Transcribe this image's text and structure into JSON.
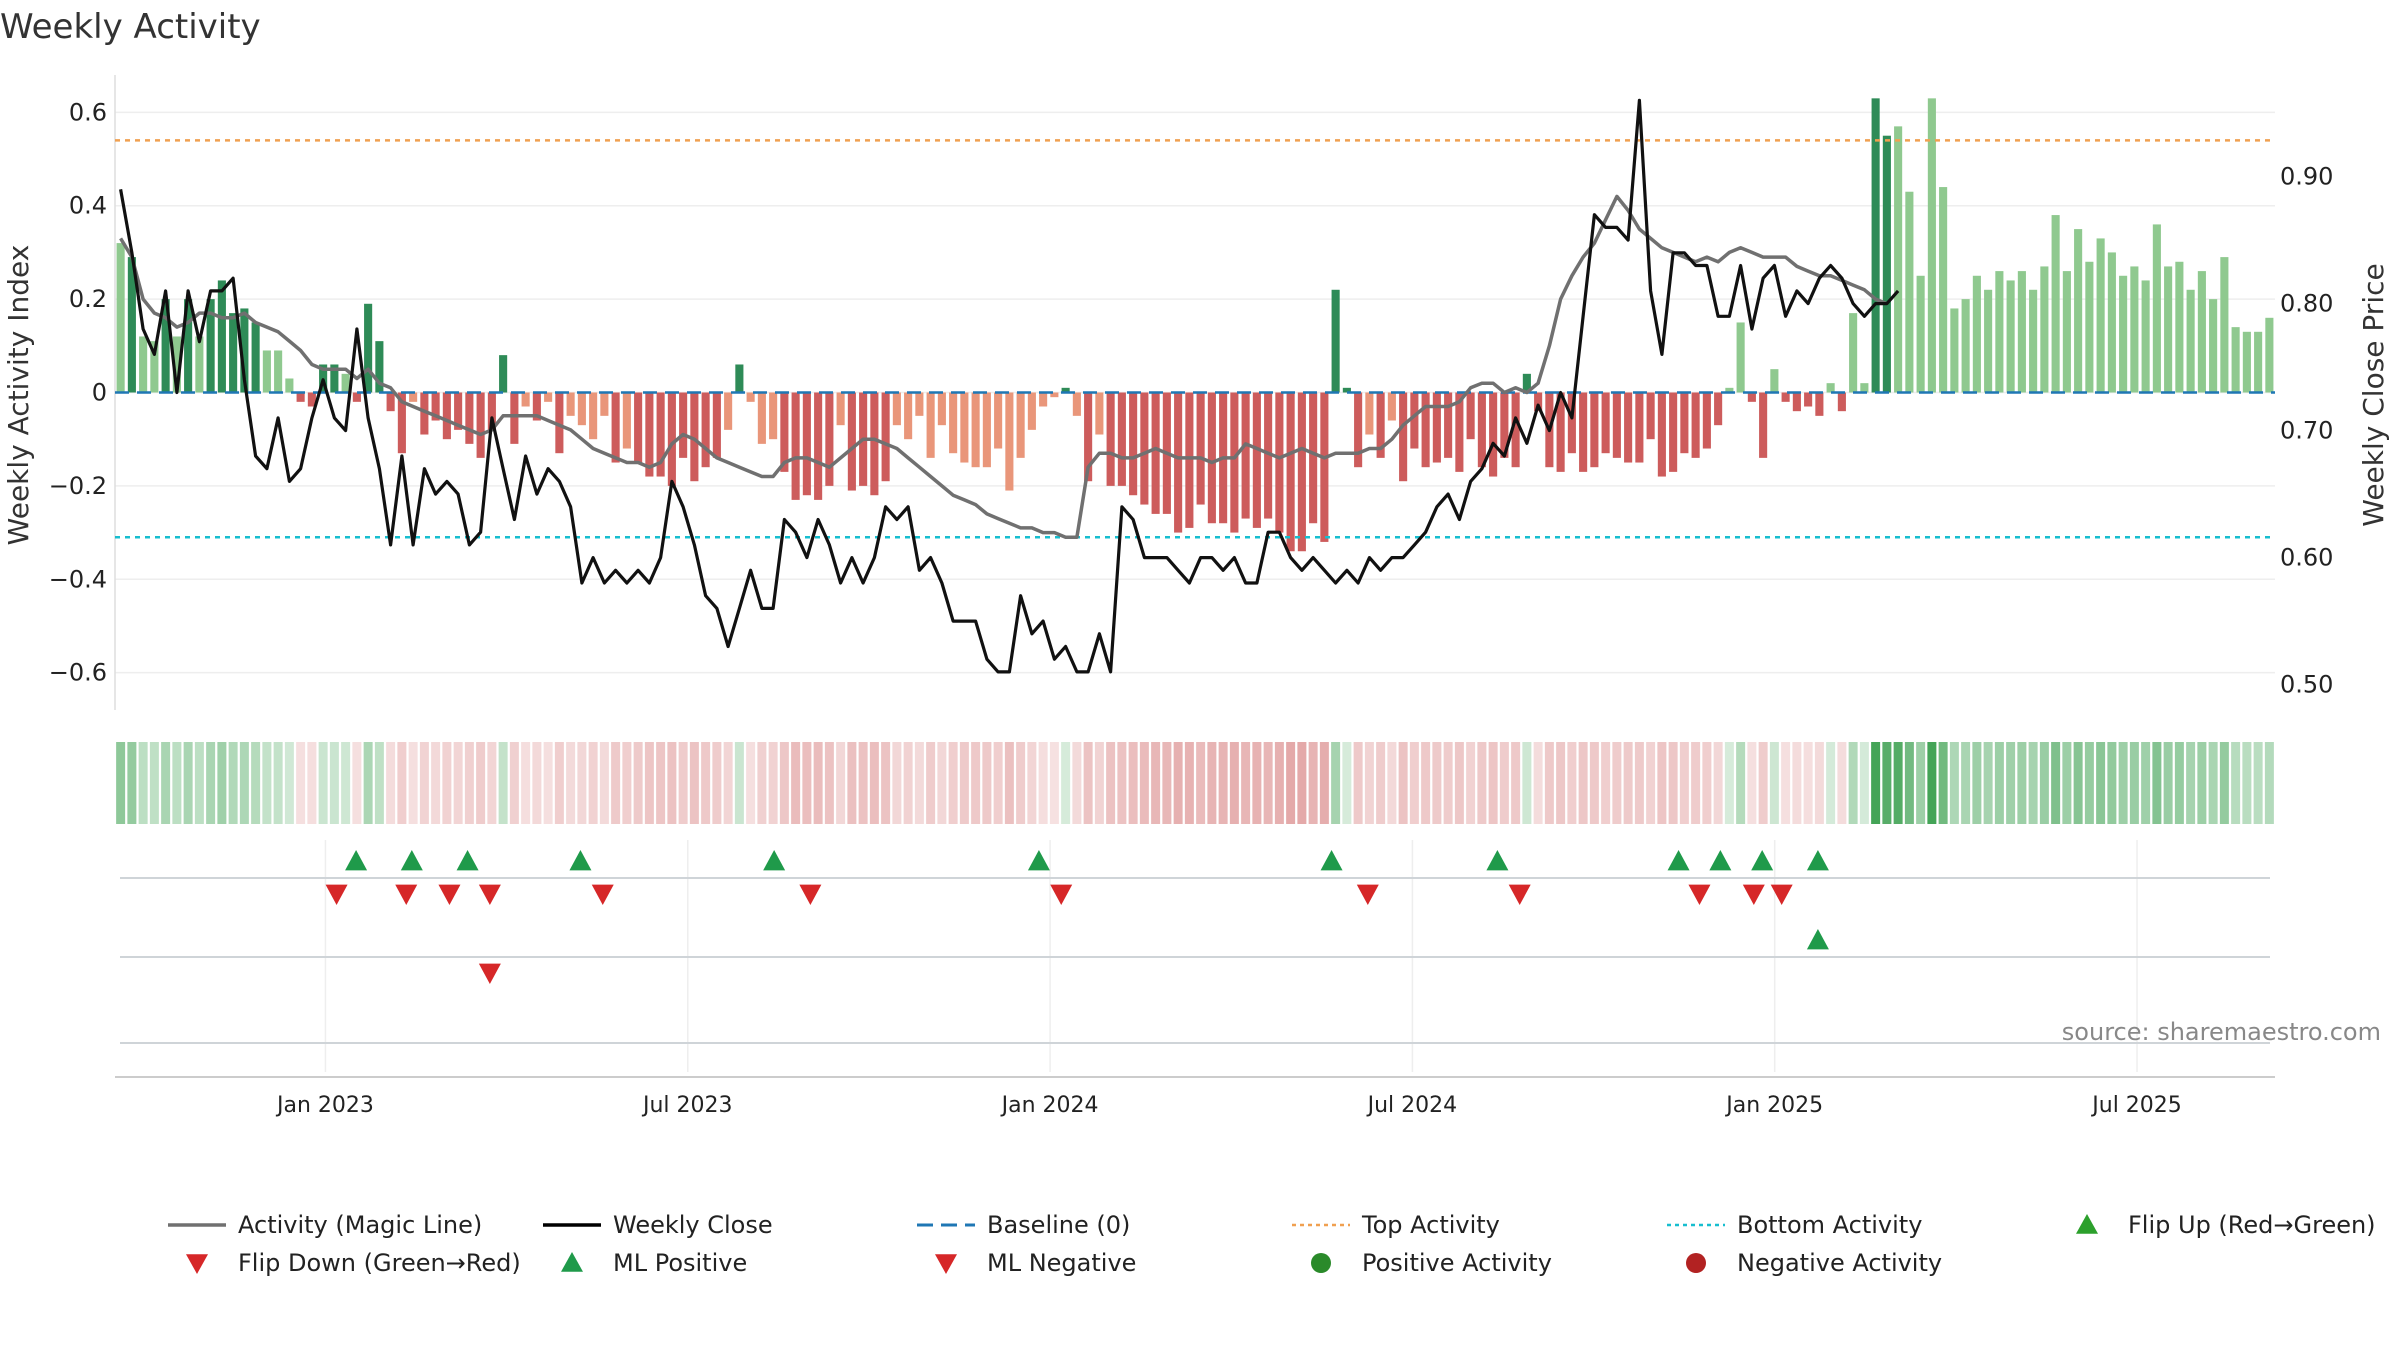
{
  "chart_data": {
    "type": "bar",
    "title": "Weekly Activity",
    "ylabel": "Weekly Activity Index",
    "y2label": "Weekly Close Price",
    "source": "source: sharemaestro.com",
    "ylim": [
      -0.68,
      0.68
    ],
    "y2lim": [
      0.48,
      0.98
    ],
    "yticks": [
      0.6,
      0.4,
      0.2,
      0,
      -0.2,
      -0.4,
      -0.6
    ],
    "ytick_labels": [
      "0.6",
      "0.4",
      "0.2",
      "0",
      "−0.2",
      "−0.4",
      "−0.6"
    ],
    "y2ticks": [
      0.9,
      0.8,
      0.7,
      0.6,
      0.5
    ],
    "y2tick_labels": [
      "0.90",
      "0.80",
      "0.70",
      "0.60",
      "0.50"
    ],
    "xlim": [
      0,
      155
    ],
    "xticks": [
      15.1,
      41.1,
      67.1,
      93.1,
      119.1,
      145.1
    ],
    "xtick_labels": [
      "Jan 2023",
      "Jul 2023",
      "Jan 2024",
      "Jul 2024",
      "Jan 2025",
      "Jul 2025"
    ],
    "baseline": 0,
    "top_activity": 0.54,
    "bottom_activity": -0.31,
    "activity": [
      0.32,
      0.29,
      0.12,
      0.11,
      0.2,
      0.12,
      0.2,
      0.12,
      0.2,
      0.24,
      0.17,
      0.18,
      0.15,
      0.09,
      0.09,
      0.03,
      -0.02,
      -0.03,
      0.06,
      0.06,
      0.04,
      -0.02,
      0.19,
      0.11,
      -0.04,
      -0.13,
      -0.02,
      -0.09,
      -0.06,
      -0.1,
      -0.08,
      -0.11,
      -0.14,
      -0.08,
      0.08,
      -0.11,
      -0.03,
      -0.06,
      -0.02,
      -0.13,
      -0.05,
      -0.07,
      -0.1,
      -0.05,
      -0.15,
      -0.12,
      -0.15,
      -0.18,
      -0.18,
      -0.2,
      -0.14,
      -0.19,
      -0.16,
      -0.14,
      -0.08,
      0.06,
      -0.02,
      -0.11,
      -0.1,
      -0.17,
      -0.23,
      -0.22,
      -0.23,
      -0.2,
      -0.07,
      -0.21,
      -0.2,
      -0.22,
      -0.19,
      -0.07,
      -0.1,
      -0.05,
      -0.14,
      -0.07,
      -0.13,
      -0.15,
      -0.16,
      -0.16,
      -0.12,
      -0.21,
      -0.14,
      -0.08,
      -0.03,
      -0.01,
      0.01,
      -0.05,
      -0.19,
      -0.09,
      -0.2,
      -0.2,
      -0.22,
      -0.24,
      -0.26,
      -0.26,
      -0.3,
      -0.29,
      -0.24,
      -0.28,
      -0.28,
      -0.3,
      -0.27,
      -0.29,
      -0.27,
      -0.3,
      -0.34,
      -0.34,
      -0.28,
      -0.32,
      0.22,
      0.01,
      -0.16,
      -0.09,
      -0.14,
      -0.06,
      -0.19,
      -0.12,
      -0.16,
      -0.15,
      -0.14,
      -0.17,
      -0.1,
      -0.16,
      -0.18,
      -0.14,
      -0.16,
      0.04,
      -0.04,
      -0.16,
      -0.17,
      -0.13,
      -0.17,
      -0.16,
      -0.13,
      -0.14,
      -0.15,
      -0.15,
      -0.1,
      -0.18,
      -0.17,
      -0.13,
      -0.14,
      -0.12,
      -0.07,
      0.01,
      0.15,
      -0.02,
      -0.14,
      0.05,
      -0.02,
      -0.04,
      -0.03,
      -0.05,
      0.02,
      -0.04,
      0.17,
      0.02,
      0.63,
      0.55,
      0.57,
      0.43,
      0.25,
      0.63,
      0.44,
      0.18,
      0.2,
      0.25,
      0.22,
      0.26,
      0.24,
      0.26,
      0.22,
      0.27,
      0.38,
      0.26,
      0.35,
      0.28,
      0.33,
      0.3,
      0.25,
      0.27,
      0.24,
      0.36,
      0.27,
      0.28,
      0.22,
      0.26,
      0.2,
      0.29,
      0.14,
      0.13,
      0.13,
      0.16
    ],
    "activity_labels_note": "One bar per week, Nov 2022 – Sep 2025",
    "weekly_close": [
      0.89,
      0.84,
      0.78,
      0.76,
      0.81,
      0.73,
      0.81,
      0.77,
      0.81,
      0.81,
      0.82,
      0.74,
      0.68,
      0.67,
      0.71,
      0.66,
      0.67,
      0.71,
      0.74,
      0.71,
      0.7,
      0.78,
      0.71,
      0.67,
      0.61,
      0.68,
      0.61,
      0.67,
      0.65,
      0.66,
      0.65,
      0.61,
      0.62,
      0.71,
      0.67,
      0.63,
      0.68,
      0.65,
      0.67,
      0.66,
      0.64,
      0.58,
      0.6,
      0.58,
      0.59,
      0.58,
      0.59,
      0.58,
      0.6,
      0.66,
      0.64,
      0.61,
      0.57,
      0.56,
      0.53,
      0.56,
      0.59,
      0.56,
      0.56,
      0.63,
      0.62,
      0.6,
      0.63,
      0.61,
      0.58,
      0.6,
      0.58,
      0.6,
      0.64,
      0.63,
      0.64,
      0.59,
      0.6,
      0.58,
      0.55,
      0.55,
      0.55,
      0.52,
      0.51,
      0.51,
      0.57,
      0.54,
      0.55,
      0.52,
      0.53,
      0.51,
      0.51,
      0.54,
      0.51,
      0.64,
      0.63,
      0.6,
      0.6,
      0.6,
      0.59,
      0.58,
      0.6,
      0.6,
      0.59,
      0.6,
      0.58,
      0.58,
      0.62,
      0.62,
      0.6,
      0.59,
      0.6,
      0.59,
      0.58,
      0.59,
      0.58,
      0.6,
      0.59,
      0.6,
      0.6,
      0.61,
      0.62,
      0.64,
      0.65,
      0.63,
      0.66,
      0.67,
      0.69,
      0.68,
      0.71,
      0.69,
      0.72,
      0.7,
      0.73,
      0.71,
      0.79,
      0.87,
      0.86,
      0.86,
      0.85,
      0.96,
      0.81,
      0.76,
      0.84,
      0.84,
      0.83,
      0.83,
      0.79,
      0.79,
      0.83,
      0.78,
      0.82,
      0.83,
      0.79,
      0.81,
      0.8,
      0.82,
      0.83,
      0.82,
      0.8,
      0.79,
      0.8,
      0.8,
      0.81
    ],
    "magic_line": [
      0.33,
      0.29,
      0.2,
      0.17,
      0.16,
      0.14,
      0.15,
      0.17,
      0.17,
      0.16,
      0.16,
      0.17,
      0.15,
      0.14,
      0.13,
      0.11,
      0.09,
      0.06,
      0.05,
      0.05,
      0.05,
      0.03,
      0.05,
      0.02,
      0.01,
      -0.02,
      -0.03,
      -0.04,
      -0.05,
      -0.06,
      -0.07,
      -0.08,
      -0.09,
      -0.08,
      -0.05,
      -0.05,
      -0.05,
      -0.05,
      -0.06,
      -0.07,
      -0.08,
      -0.1,
      -0.12,
      -0.13,
      -0.14,
      -0.15,
      -0.15,
      -0.16,
      -0.15,
      -0.11,
      -0.09,
      -0.1,
      -0.12,
      -0.14,
      -0.15,
      -0.16,
      -0.17,
      -0.18,
      -0.18,
      -0.15,
      -0.14,
      -0.14,
      -0.15,
      -0.16,
      -0.14,
      -0.12,
      -0.1,
      -0.1,
      -0.11,
      -0.12,
      -0.14,
      -0.16,
      -0.18,
      -0.2,
      -0.22,
      -0.23,
      -0.24,
      -0.26,
      -0.27,
      -0.28,
      -0.29,
      -0.29,
      -0.3,
      -0.3,
      -0.31,
      -0.31,
      -0.16,
      -0.13,
      -0.13,
      -0.14,
      -0.14,
      -0.13,
      -0.12,
      -0.13,
      -0.14,
      -0.14,
      -0.14,
      -0.15,
      -0.14,
      -0.14,
      -0.11,
      -0.12,
      -0.13,
      -0.14,
      -0.13,
      -0.12,
      -0.13,
      -0.14,
      -0.13,
      -0.13,
      -0.13,
      -0.12,
      -0.12,
      -0.1,
      -0.07,
      -0.05,
      -0.03,
      -0.03,
      -0.03,
      -0.02,
      0.01,
      0.02,
      0.02,
      0.0,
      0.01,
      0.0,
      0.02,
      0.1,
      0.2,
      0.25,
      0.29,
      0.32,
      0.37,
      0.42,
      0.39,
      0.35,
      0.33,
      0.31,
      0.3,
      0.29,
      0.28,
      0.29,
      0.28,
      0.3,
      0.31,
      0.3,
      0.29,
      0.29,
      0.29,
      0.27,
      0.26,
      0.25,
      0.25,
      0.24,
      0.23,
      0.22,
      0.2,
      0.19
    ],
    "strip": "composite activity heat-strip (green = positive, red = negative)",
    "events": {
      "flip_up": [
        17.3,
        21.3,
        25.3,
        33.4,
        47.3,
        66.3,
        87.3,
        99.2,
        112.2,
        115.2,
        118.2,
        122.2
      ],
      "flip_down": [
        15.9,
        20.9,
        24.0,
        26.9,
        35.0,
        49.9,
        67.9,
        89.9,
        100.8,
        113.7,
        117.6,
        119.6
      ],
      "ml_positive": [
        122.2
      ],
      "ml_negative": [
        26.9
      ]
    },
    "legend": [
      {
        "label": "Activity (Magic Line)",
        "marker": "line",
        "color": "#707070"
      },
      {
        "label": "Weekly Close",
        "marker": "line",
        "color": "#000000"
      },
      {
        "label": "Baseline (0)",
        "marker": "dashed-line",
        "color": "#1f77b4"
      },
      {
        "label": "Top Activity",
        "marker": "dotted-line",
        "color": "#f0a050"
      },
      {
        "label": "Bottom Activity",
        "marker": "dotted-line",
        "color": "#17becf"
      },
      {
        "label": "Flip Up (Red→Green)",
        "marker": "triangle-up",
        "color": "#2ca02c"
      },
      {
        "label": "Flip Down (Green→Red)",
        "marker": "triangle-down",
        "color": "#d62728"
      },
      {
        "label": "ML Positive",
        "marker": "triangle-up",
        "color": "#1f9a4a"
      },
      {
        "label": "ML Negative",
        "marker": "triangle-down",
        "color": "#d62728"
      },
      {
        "label": "Positive Activity",
        "marker": "circle",
        "color": "#2a8a2a"
      },
      {
        "label": "Negative Activity",
        "marker": "circle",
        "color": "#b22222"
      }
    ],
    "colors": {
      "pos_dark": "#2e8b57",
      "pos_light": "#8fc98f",
      "neg_dark": "#cd5c5c",
      "neg_light": "#e9967a",
      "close": "#111111",
      "magic": "#707070",
      "top": "#f0a050",
      "bottom": "#17becf",
      "baseline": "#1f77b4",
      "up": "#2ca02c",
      "down": "#d62728"
    }
  }
}
